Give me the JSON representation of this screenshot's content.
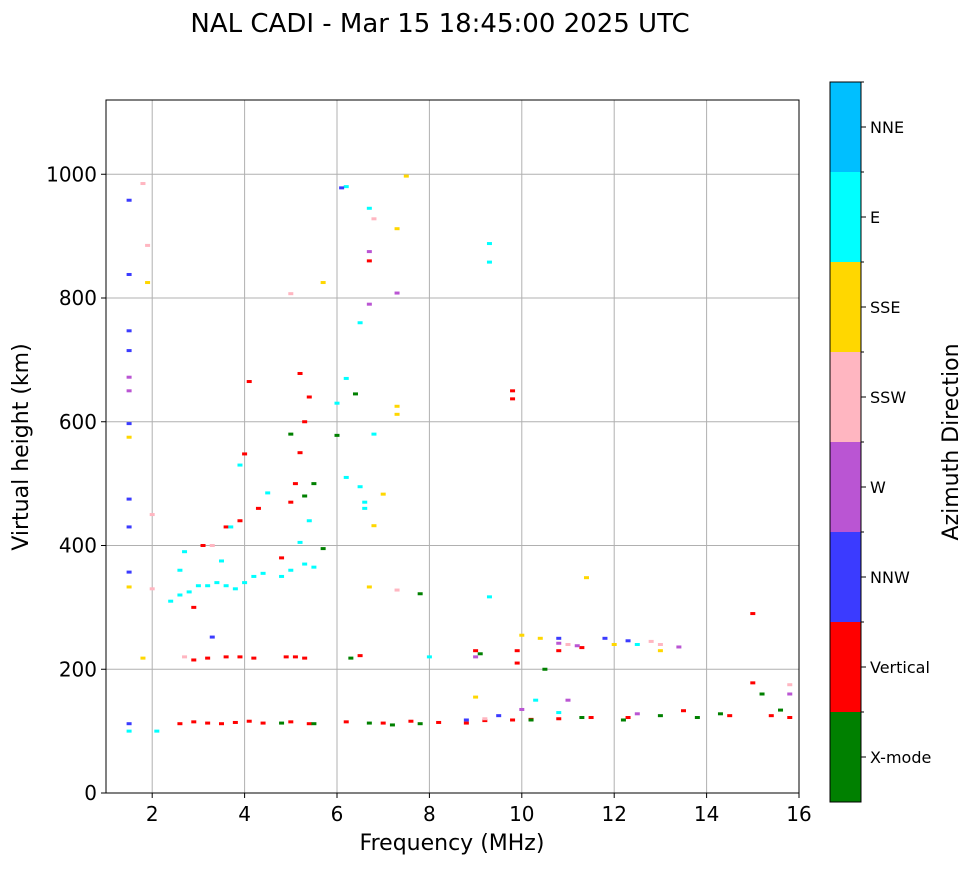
{
  "chart_data": {
    "type": "scatter",
    "title": "NAL CADI - Mar 15 18:45:00 2025 UTC",
    "xlabel": "Frequency (MHz)",
    "ylabel": "Virtual height (km)",
    "xlim": [
      1,
      16
    ],
    "ylim": [
      0,
      1120
    ],
    "xticks": [
      2,
      4,
      6,
      8,
      10,
      12,
      14,
      16
    ],
    "yticks": [
      0,
      200,
      400,
      600,
      800,
      1000
    ],
    "grid": true,
    "colorbar": {
      "label": "Azimuth Direction",
      "categories": [
        {
          "name": "X-mode",
          "color": "#008000"
        },
        {
          "name": "Vertical",
          "color": "#ff0000"
        },
        {
          "name": "NNW",
          "color": "#3b3bff"
        },
        {
          "name": "W",
          "color": "#ba55d3"
        },
        {
          "name": "SSW",
          "color": "#ffb6c1"
        },
        {
          "name": "SSE",
          "color": "#ffd700"
        },
        {
          "name": "E",
          "color": "#00ffff"
        },
        {
          "name": "NNE",
          "color": "#00bfff"
        }
      ]
    },
    "series": [
      {
        "name": "Vertical",
        "points": [
          [
            2.6,
            112
          ],
          [
            2.9,
            115
          ],
          [
            3.2,
            113
          ],
          [
            3.5,
            112
          ],
          [
            3.8,
            114
          ],
          [
            4.1,
            116
          ],
          [
            4.4,
            113
          ],
          [
            5.0,
            115
          ],
          [
            5.4,
            112
          ],
          [
            6.2,
            115
          ],
          [
            7.0,
            113
          ],
          [
            7.6,
            116
          ],
          [
            8.2,
            114
          ],
          [
            8.8,
            113
          ],
          [
            9.2,
            117
          ],
          [
            9.8,
            118
          ],
          [
            10.2,
            119
          ],
          [
            10.8,
            120
          ],
          [
            11.5,
            122
          ],
          [
            12.3,
            122
          ],
          [
            13.5,
            133
          ],
          [
            14.5,
            125
          ],
          [
            15.4,
            125
          ],
          [
            15.8,
            122
          ],
          [
            2.9,
            215
          ],
          [
            3.2,
            218
          ],
          [
            3.6,
            220
          ],
          [
            3.9,
            220
          ],
          [
            4.2,
            218
          ],
          [
            4.9,
            220
          ],
          [
            5.1,
            220
          ],
          [
            5.3,
            218
          ],
          [
            6.5,
            222
          ],
          [
            9.0,
            230
          ],
          [
            9.9,
            210
          ],
          [
            9.9,
            230
          ],
          [
            10.8,
            230
          ],
          [
            11.3,
            235
          ],
          [
            2.9,
            300
          ],
          [
            3.1,
            400
          ],
          [
            3.6,
            430
          ],
          [
            3.9,
            440
          ],
          [
            4.0,
            548
          ],
          [
            4.3,
            460
          ],
          [
            4.8,
            380
          ],
          [
            5.0,
            470
          ],
          [
            5.1,
            500
          ],
          [
            5.2,
            550
          ],
          [
            5.3,
            600
          ],
          [
            5.4,
            640
          ],
          [
            5.2,
            678
          ],
          [
            4.1,
            665
          ],
          [
            9.8,
            650
          ],
          [
            9.8,
            637
          ],
          [
            15.0,
            290
          ],
          [
            15.0,
            178
          ],
          [
            6.7,
            860
          ]
        ]
      },
      {
        "name": "E",
        "points": [
          [
            2.4,
            310
          ],
          [
            2.6,
            320
          ],
          [
            2.8,
            325
          ],
          [
            3.0,
            335
          ],
          [
            3.2,
            335
          ],
          [
            3.4,
            340
          ],
          [
            3.6,
            335
          ],
          [
            3.8,
            330
          ],
          [
            4.0,
            340
          ],
          [
            4.2,
            350
          ],
          [
            4.4,
            355
          ],
          [
            4.8,
            350
          ],
          [
            5.0,
            360
          ],
          [
            5.3,
            370
          ],
          [
            5.5,
            365
          ],
          [
            2.6,
            360
          ],
          [
            2.7,
            390
          ],
          [
            3.5,
            375
          ],
          [
            3.7,
            430
          ],
          [
            3.9,
            530
          ],
          [
            4.5,
            485
          ],
          [
            5.2,
            405
          ],
          [
            5.4,
            440
          ],
          [
            1.5,
            100
          ],
          [
            2.1,
            100
          ],
          [
            6.0,
            630
          ],
          [
            6.2,
            670
          ],
          [
            6.2,
            510
          ],
          [
            6.5,
            495
          ],
          [
            6.6,
            470
          ],
          [
            6.6,
            460
          ],
          [
            6.8,
            580
          ],
          [
            6.5,
            760
          ],
          [
            6.7,
            945
          ],
          [
            6.2,
            980
          ],
          [
            9.3,
            888
          ],
          [
            9.3,
            858
          ],
          [
            9.3,
            317
          ],
          [
            10.3,
            150
          ],
          [
            10.8,
            130
          ],
          [
            12.5,
            240
          ],
          [
            8.0,
            220
          ]
        ]
      },
      {
        "name": "X-mode",
        "points": [
          [
            4.8,
            113
          ],
          [
            5.5,
            112
          ],
          [
            6.3,
            218
          ],
          [
            6.7,
            113
          ],
          [
            7.2,
            110
          ],
          [
            7.8,
            112
          ],
          [
            10.2,
            118
          ],
          [
            10.5,
            200
          ],
          [
            11.3,
            122
          ],
          [
            12.2,
            118
          ],
          [
            13.0,
            125
          ],
          [
            13.8,
            122
          ],
          [
            14.3,
            128
          ],
          [
            15.2,
            160
          ],
          [
            15.6,
            134
          ],
          [
            5.7,
            395
          ],
          [
            5.3,
            480
          ],
          [
            5.5,
            500
          ],
          [
            6.0,
            578
          ],
          [
            6.4,
            645
          ],
          [
            7.8,
            322
          ],
          [
            5.0,
            580
          ],
          [
            9.1,
            225
          ]
        ]
      },
      {
        "name": "NNW",
        "points": [
          [
            1.5,
            958
          ],
          [
            1.5,
            838
          ],
          [
            1.5,
            747
          ],
          [
            1.5,
            715
          ],
          [
            1.5,
            597
          ],
          [
            1.5,
            475
          ],
          [
            1.5,
            430
          ],
          [
            1.5,
            357
          ],
          [
            1.5,
            112
          ],
          [
            3.3,
            252
          ],
          [
            8.8,
            118
          ],
          [
            9.5,
            125
          ],
          [
            10.8,
            250
          ],
          [
            11.8,
            250
          ],
          [
            12.3,
            246
          ],
          [
            6.1,
            978
          ]
        ]
      },
      {
        "name": "W",
        "points": [
          [
            1.5,
            672
          ],
          [
            1.5,
            650
          ],
          [
            6.7,
            875
          ],
          [
            6.7,
            790
          ],
          [
            7.3,
            808
          ],
          [
            9.0,
            220
          ],
          [
            10.0,
            135
          ],
          [
            10.8,
            242
          ],
          [
            11.2,
            238
          ],
          [
            12.5,
            128
          ],
          [
            13.4,
            236
          ],
          [
            15.8,
            160
          ],
          [
            11.0,
            150
          ]
        ]
      },
      {
        "name": "SSW",
        "points": [
          [
            1.8,
            985
          ],
          [
            1.9,
            885
          ],
          [
            2.0,
            450
          ],
          [
            2.0,
            330
          ],
          [
            3.3,
            400
          ],
          [
            5.0,
            807
          ],
          [
            6.8,
            928
          ],
          [
            7.3,
            328
          ],
          [
            11.0,
            240
          ],
          [
            12.8,
            245
          ],
          [
            13.0,
            240
          ],
          [
            15.8,
            175
          ],
          [
            2.7,
            220
          ],
          [
            9.2,
            120
          ]
        ]
      },
      {
        "name": "SSE",
        "points": [
          [
            1.5,
            575
          ],
          [
            1.5,
            333
          ],
          [
            1.8,
            218
          ],
          [
            1.9,
            825
          ],
          [
            5.7,
            825
          ],
          [
            6.7,
            333
          ],
          [
            6.8,
            432
          ],
          [
            7.3,
            912
          ],
          [
            7.3,
            625
          ],
          [
            7.3,
            612
          ],
          [
            7.5,
            997
          ],
          [
            9.0,
            155
          ],
          [
            10.4,
            250
          ],
          [
            11.4,
            348
          ],
          [
            12.0,
            240
          ],
          [
            13.0,
            230
          ],
          [
            7.0,
            483
          ],
          [
            10.0,
            255
          ]
        ]
      }
    ]
  }
}
